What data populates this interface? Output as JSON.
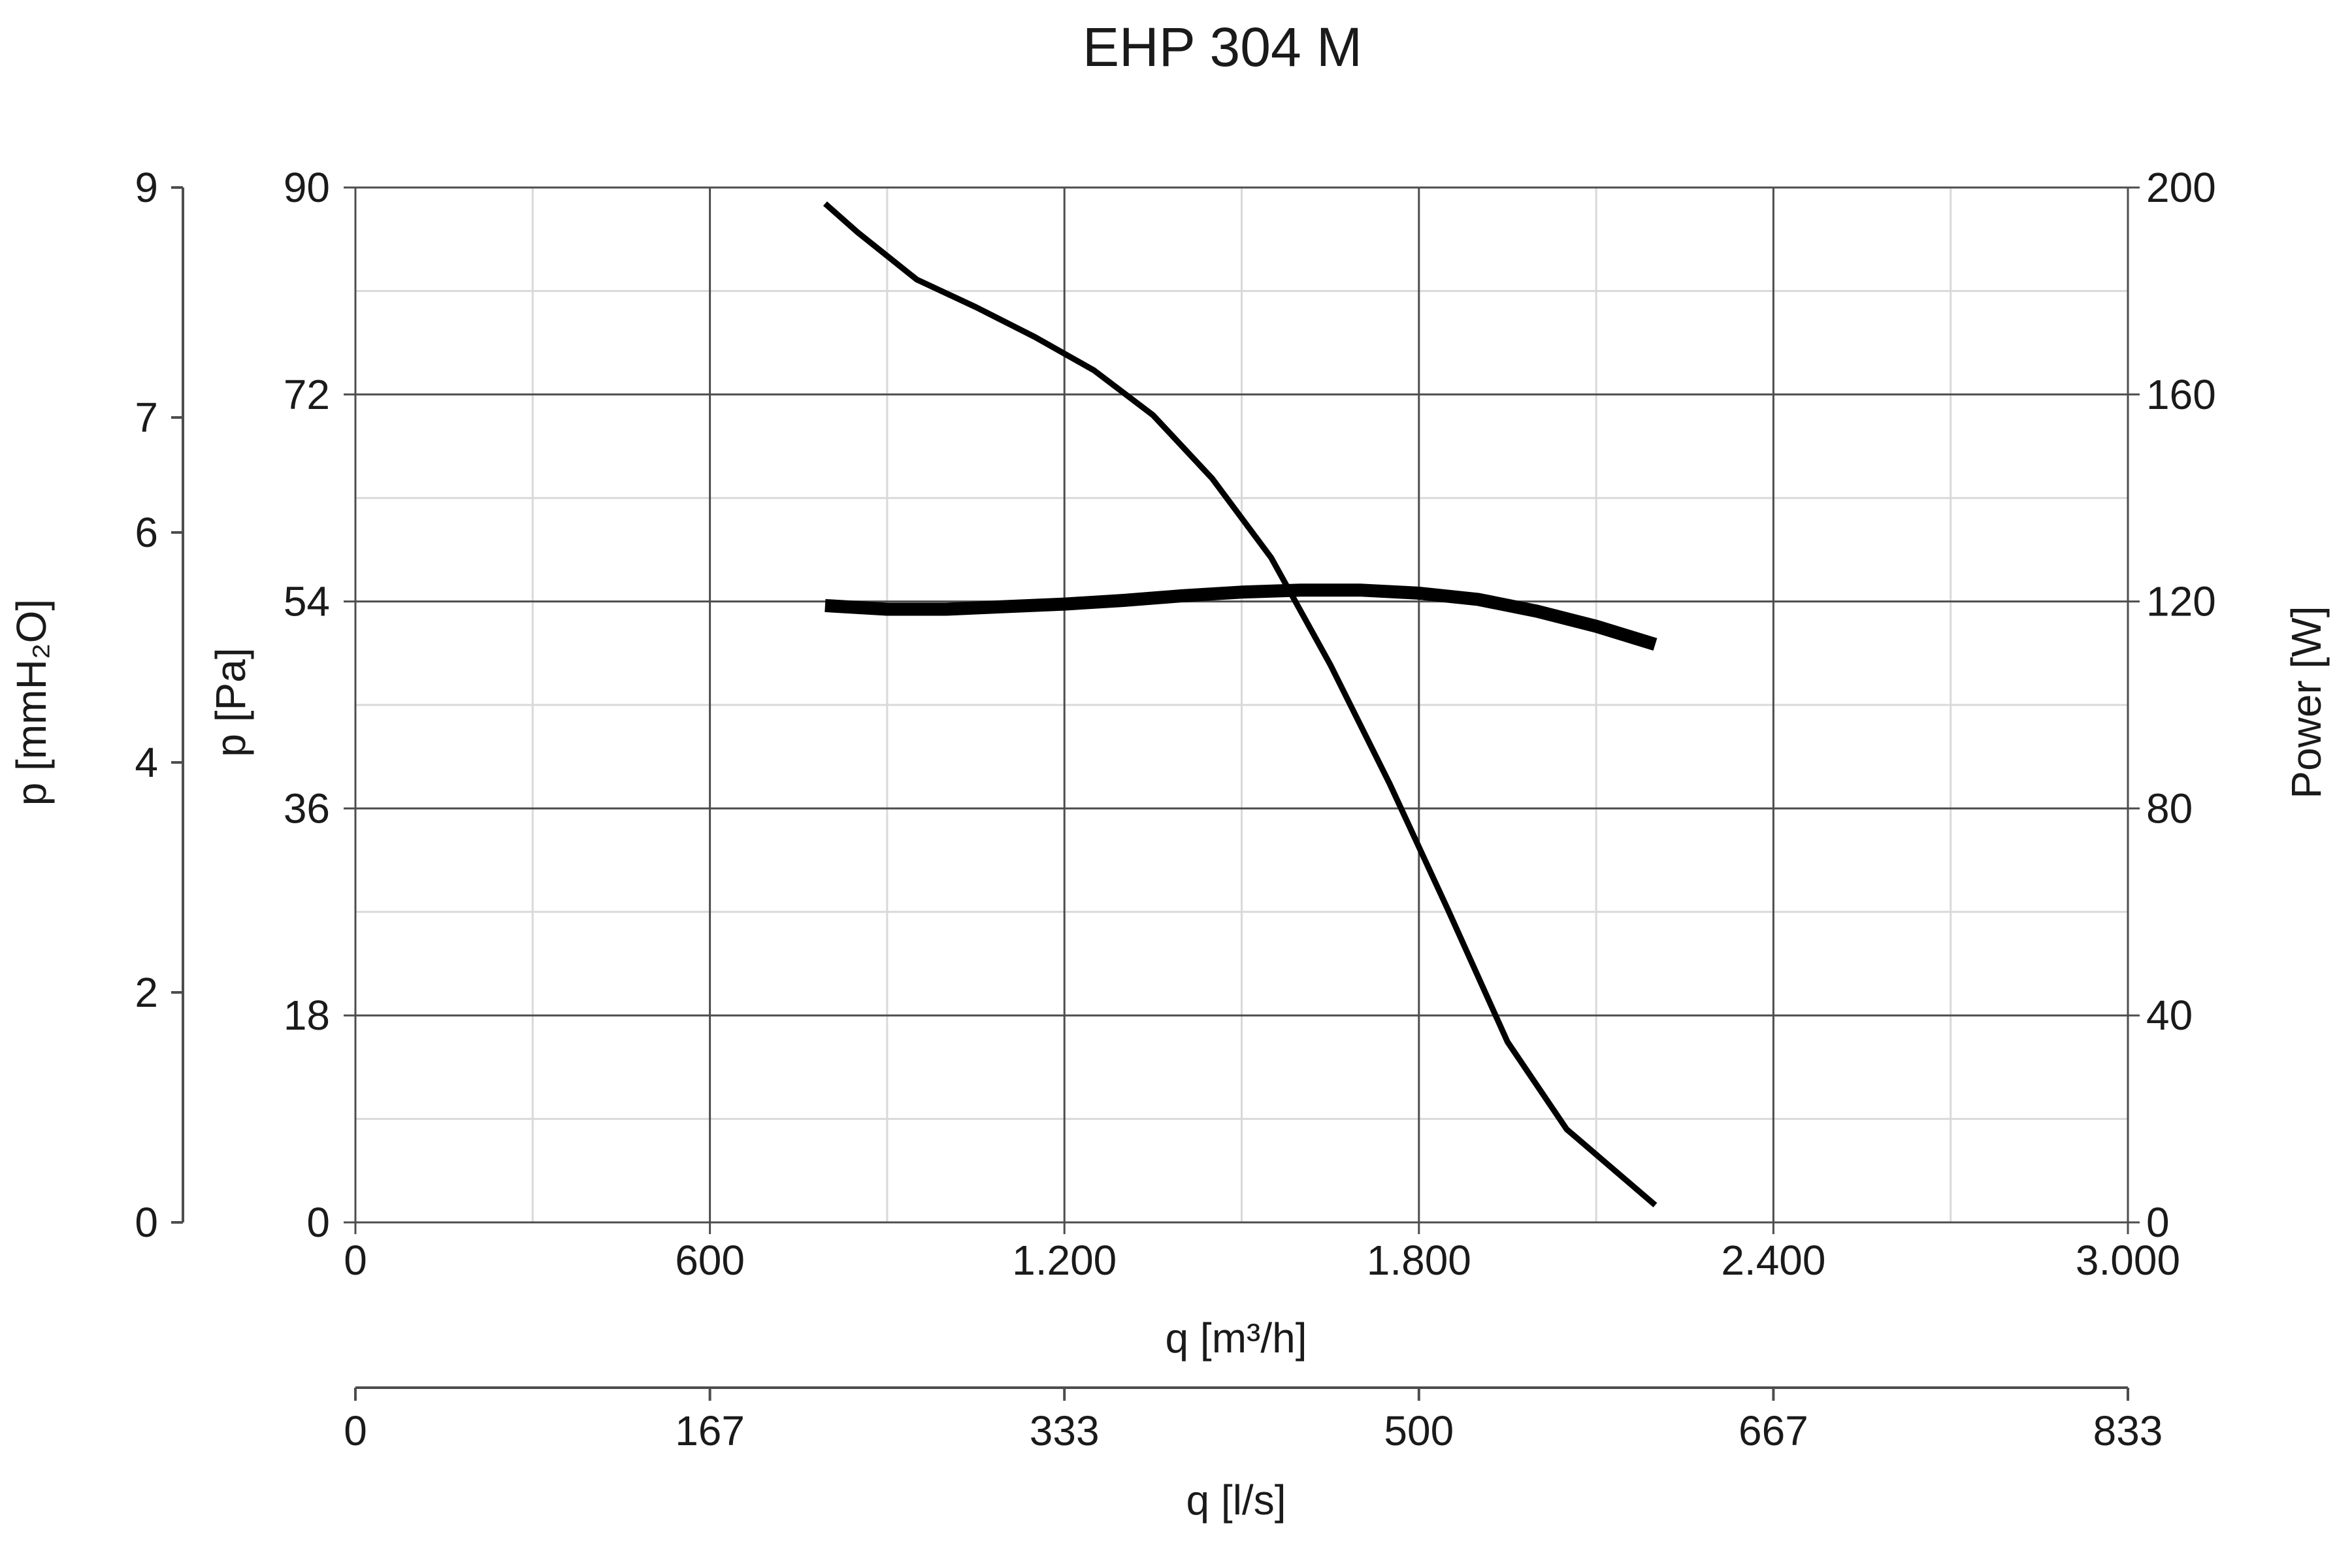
{
  "chart_data": {
    "type": "line",
    "title": "EHP 304 M",
    "x_axis": {
      "label": "q [m³/h]",
      "range": [
        0,
        3000
      ],
      "ticks": [
        0,
        600,
        1200,
        1800,
        2400,
        3000
      ],
      "tick_labels": [
        "0",
        "600",
        "1.200",
        "1.800",
        "2.400",
        "3.000"
      ]
    },
    "x2_axis": {
      "label": "q [l/s]",
      "range": [
        0,
        833
      ],
      "tick_labels": [
        "0",
        "167",
        "333",
        "500",
        "667",
        "833"
      ]
    },
    "y_axis": {
      "label": "p [Pa]",
      "range": [
        0,
        90
      ],
      "ticks": [
        0,
        18,
        36,
        54,
        72,
        90
      ],
      "tick_labels": [
        "0",
        "18",
        "36",
        "54",
        "72",
        "90"
      ]
    },
    "y_outer_axis": {
      "label": "p [mmH₂O]",
      "range": [
        0,
        9
      ],
      "ticks": [
        0,
        2,
        4,
        6,
        7,
        9
      ],
      "tick_labels": [
        "0",
        "2",
        "4",
        "6",
        "7",
        "9"
      ]
    },
    "y2_axis": {
      "label": "Power [W]",
      "range": [
        0,
        200
      ],
      "ticks": [
        0,
        40,
        80,
        120,
        160,
        200
      ],
      "tick_labels": [
        "0",
        "40",
        "80",
        "120",
        "160",
        "200"
      ]
    },
    "grid": true,
    "series": [
      {
        "axis": "y",
        "stroke": "thin",
        "points": [
          [
            795,
            88.6
          ],
          [
            850,
            86.1
          ],
          [
            950,
            82.0
          ],
          [
            1050,
            79.6
          ],
          [
            1150,
            77.0
          ],
          [
            1250,
            74.1
          ],
          [
            1350,
            70.2
          ],
          [
            1450,
            64.7
          ],
          [
            1550,
            57.8
          ],
          [
            1650,
            48.5
          ],
          [
            1750,
            38.2
          ],
          [
            1850,
            27.1
          ],
          [
            1950,
            15.7
          ],
          [
            2050,
            8.1
          ],
          [
            2200,
            1.5
          ]
        ]
      },
      {
        "axis": "y2",
        "stroke": "thick",
        "points": [
          [
            795,
            119.2
          ],
          [
            900,
            118.5
          ],
          [
            1000,
            118.5
          ],
          [
            1100,
            119.0
          ],
          [
            1200,
            119.5
          ],
          [
            1300,
            120.2
          ],
          [
            1400,
            121.1
          ],
          [
            1500,
            121.8
          ],
          [
            1600,
            122.2
          ],
          [
            1700,
            122.2
          ],
          [
            1800,
            121.6
          ],
          [
            1900,
            120.4
          ],
          [
            2000,
            118.1
          ],
          [
            2100,
            115.2
          ],
          [
            2200,
            111.7
          ]
        ]
      }
    ],
    "colors": {
      "line": "#000000",
      "grid_major": "#4d4d4d",
      "grid_minor": "#d9d9d9"
    }
  }
}
